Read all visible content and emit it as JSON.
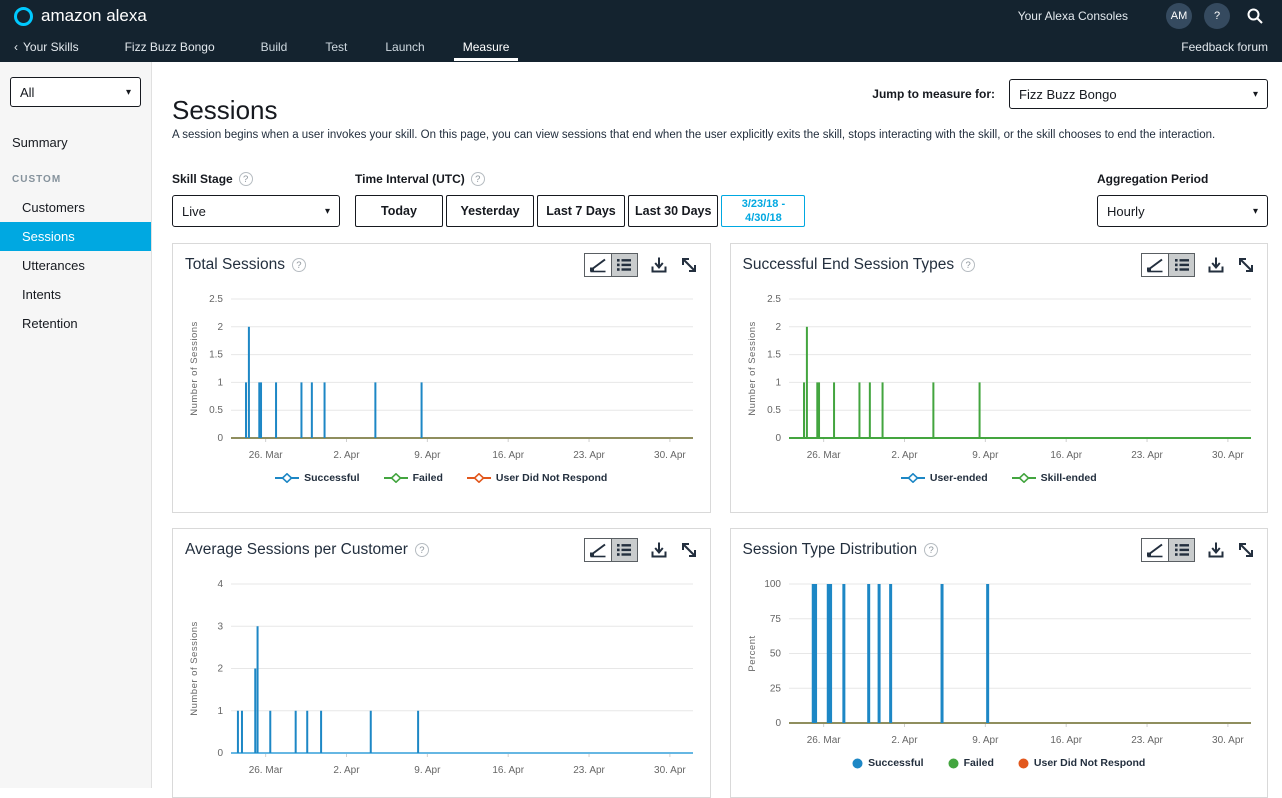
{
  "topbar": {
    "brand": "amazon alexa",
    "consoles_link": "Your Alexa Consoles",
    "avatar": "AM",
    "feedback": "Feedback forum"
  },
  "topnav": {
    "back_chevron": "‹",
    "back": "Your Skills",
    "skill_name": "Fizz Buzz Bongo",
    "tabs": [
      "Build",
      "Test",
      "Launch",
      "Measure"
    ],
    "active_tab": "Measure"
  },
  "sidebar": {
    "filter_value": "All",
    "summary": "Summary",
    "section": "CUSTOM",
    "items": [
      "Customers",
      "Sessions",
      "Utterances",
      "Intents",
      "Retention"
    ],
    "active_item": "Sessions",
    "active_color": "#00a8e1"
  },
  "page": {
    "title": "Sessions",
    "description": "A session begins when a user invokes your skill. On this page, you can view sessions that end when the user explicitly exits the skill, stops interacting with the skill, or the skill chooses to end the interaction."
  },
  "filters": {
    "jump": {
      "label": "Jump to measure for:",
      "value": "Fizz Buzz Bongo"
    },
    "skill_stage": {
      "label": "Skill Stage",
      "value": "Live"
    },
    "time_interval": {
      "label": "Time Interval (UTC)",
      "options": [
        "Today",
        "Yesterday",
        "Last 7 Days",
        "Last 30 Days"
      ],
      "custom_range_line1": "3/23/18 -",
      "custom_range_line2": "4/30/18",
      "selected": "3/23/18 - 4/30/18"
    },
    "aggregation": {
      "label": "Aggregation Period",
      "value": "Hourly"
    }
  },
  "chart_data": [
    {
      "type": "bar",
      "title": "Total Sessions",
      "ylabel": "Number of Sessions",
      "ylim": [
        0,
        2.5
      ],
      "yticks": [
        0,
        0.5,
        1,
        1.5,
        2,
        2.5
      ],
      "xlim_days": [
        0,
        40
      ],
      "x_start_date": "3/23/18",
      "xticks": [
        {
          "day": 3,
          "label": "26. Mar"
        },
        {
          "day": 10,
          "label": "2. Apr"
        },
        {
          "day": 17,
          "label": "9. Apr"
        },
        {
          "day": 24,
          "label": "16. Apr"
        },
        {
          "day": 31,
          "label": "23. Apr"
        },
        {
          "day": 38,
          "label": "30. Apr"
        }
      ],
      "axis_color": "#8f8e5e",
      "spike_width": 2,
      "grid": true,
      "series": [
        {
          "name": "Successful",
          "color": "#1d87c5",
          "points": [
            [
              1.3,
              1
            ],
            [
              1.55,
              2
            ],
            [
              2.45,
              1
            ],
            [
              2.6,
              1
            ],
            [
              3.9,
              1
            ],
            [
              6.1,
              1
            ],
            [
              7.0,
              1
            ],
            [
              8.1,
              1
            ],
            [
              12.5,
              1
            ],
            [
              16.5,
              1
            ]
          ]
        },
        {
          "name": "Failed",
          "color": "#43a53f",
          "flat_zero": true,
          "points": []
        },
        {
          "name": "User Did Not Respond",
          "color": "#e2571c",
          "flat_zero": true,
          "points": []
        }
      ],
      "legend": {
        "position": "bottom",
        "style": "line-diamond",
        "items": [
          {
            "label": "Successful",
            "color": "#1d87c5"
          },
          {
            "label": "Failed",
            "color": "#43a53f"
          },
          {
            "label": "User Did Not Respond",
            "color": "#e2571c"
          }
        ]
      }
    },
    {
      "type": "bar",
      "title": "Successful End Session Types",
      "ylabel": "Number of Sessions",
      "ylim": [
        0,
        2.5
      ],
      "yticks": [
        0,
        0.5,
        1,
        1.5,
        2,
        2.5
      ],
      "xlim_days": [
        0,
        40
      ],
      "x_start_date": "3/23/18",
      "xticks": [
        {
          "day": 3,
          "label": "26. Mar"
        },
        {
          "day": 10,
          "label": "2. Apr"
        },
        {
          "day": 17,
          "label": "9. Apr"
        },
        {
          "day": 24,
          "label": "16. Apr"
        },
        {
          "day": 31,
          "label": "23. Apr"
        },
        {
          "day": 38,
          "label": "30. Apr"
        }
      ],
      "axis_color": "#44a53f",
      "spike_width": 2,
      "grid": true,
      "series": [
        {
          "name": "User-ended",
          "color": "#1d87c5",
          "flat_zero": true,
          "points": []
        },
        {
          "name": "Skill-ended",
          "color": "#43a53f",
          "points": [
            [
              1.3,
              1
            ],
            [
              1.55,
              2
            ],
            [
              2.45,
              1
            ],
            [
              2.6,
              1
            ],
            [
              3.9,
              1
            ],
            [
              6.1,
              1
            ],
            [
              7.0,
              1
            ],
            [
              8.1,
              1
            ],
            [
              12.5,
              1
            ],
            [
              16.5,
              1
            ]
          ]
        }
      ],
      "legend": {
        "position": "bottom",
        "style": "line-diamond",
        "items": [
          {
            "label": "User-ended",
            "color": "#1d87c5"
          },
          {
            "label": "Skill-ended",
            "color": "#43a53f"
          }
        ]
      }
    },
    {
      "type": "bar",
      "title": "Average Sessions per Customer",
      "ylabel": "Number of Sessions",
      "ylim": [
        0,
        4
      ],
      "yticks": [
        0,
        1,
        2,
        3,
        4
      ],
      "xlim_days": [
        0,
        40
      ],
      "x_start_date": "3/23/18",
      "xticks": [
        {
          "day": 3,
          "label": "26. Mar"
        },
        {
          "day": 10,
          "label": "2. Apr"
        },
        {
          "day": 17,
          "label": "9. Apr"
        },
        {
          "day": 24,
          "label": "16. Apr"
        },
        {
          "day": 31,
          "label": "23. Apr"
        },
        {
          "day": 38,
          "label": "30. Apr"
        }
      ],
      "axis_color": "#66b7e3",
      "spike_width": 2,
      "grid": true,
      "series": [
        {
          "name": "Sessions per Customer",
          "color": "#1d87c5",
          "points": [
            [
              0.6,
              1
            ],
            [
              0.95,
              1
            ],
            [
              2.1,
              2
            ],
            [
              2.3,
              3
            ],
            [
              3.4,
              1
            ],
            [
              5.6,
              1
            ],
            [
              6.6,
              1
            ],
            [
              7.8,
              1
            ],
            [
              12.1,
              1
            ],
            [
              16.2,
              1
            ]
          ]
        }
      ],
      "legend": {
        "position": "none",
        "style": "line-diamond",
        "items": []
      }
    },
    {
      "type": "bar",
      "title": "Session Type Distribution",
      "ylabel": "Percent",
      "ylim": [
        0,
        100
      ],
      "yticks": [
        0,
        25,
        50,
        75,
        100
      ],
      "xlim_days": [
        0,
        40
      ],
      "x_start_date": "3/23/18",
      "xticks": [
        {
          "day": 3,
          "label": "26. Mar"
        },
        {
          "day": 10,
          "label": "2. Apr"
        },
        {
          "day": 17,
          "label": "9. Apr"
        },
        {
          "day": 24,
          "label": "16. Apr"
        },
        {
          "day": 31,
          "label": "23. Apr"
        },
        {
          "day": 38,
          "label": "30. Apr"
        }
      ],
      "axis_color": "#8f8e5e",
      "spike_width": 3,
      "grid": true,
      "series": [
        {
          "name": "Successful",
          "color": "#1d87c5",
          "points": [
            [
              2.1,
              100
            ],
            [
              2.3,
              100
            ],
            [
              3.4,
              100
            ],
            [
              3.6,
              100
            ],
            [
              4.75,
              100
            ],
            [
              6.9,
              100
            ],
            [
              7.8,
              100
            ],
            [
              8.8,
              100
            ],
            [
              13.25,
              100
            ],
            [
              17.2,
              100
            ]
          ]
        },
        {
          "name": "Failed",
          "color": "#43a53f",
          "flat_zero": true,
          "points": []
        },
        {
          "name": "User Did Not Respond",
          "color": "#e2571c",
          "flat_zero": true,
          "points": []
        }
      ],
      "legend": {
        "position": "bottom",
        "style": "circle",
        "items": [
          {
            "label": "Successful",
            "color": "#1d87c5"
          },
          {
            "label": "Failed",
            "color": "#43a53f"
          },
          {
            "label": "User Did Not Respond",
            "color": "#e2571c"
          }
        ]
      }
    }
  ]
}
